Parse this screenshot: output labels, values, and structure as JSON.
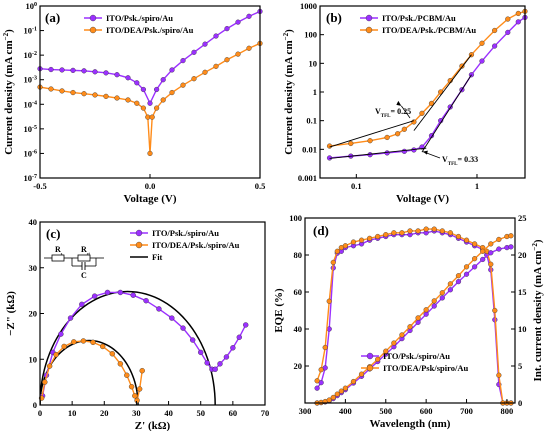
{
  "colors": {
    "purple": "#9b30ff",
    "orange": "#ff8c1a",
    "black": "#000000"
  },
  "chart_data": [
    {
      "id": "a",
      "type": "line",
      "panel_label": "(a)",
      "xlabel": "Voltage (V)",
      "ylabel": "Current density (mA cm",
      "ylabel_sup": "−2",
      "ylabel_end": ")",
      "xlim": [
        -0.5,
        0.5
      ],
      "yscale": "log",
      "ylim": [
        1e-07,
        1
      ],
      "xticks": [
        "-0.5",
        "0.0",
        "0.5"
      ],
      "xtick_values": [
        -0.5,
        0.0,
        0.5
      ],
      "yticks": [
        {
          "v": 1e-07,
          "b": "10",
          "e": "-7"
        },
        {
          "v": 1e-06,
          "b": "10",
          "e": "-6"
        },
        {
          "v": 1e-05,
          "b": "10",
          "e": "-5"
        },
        {
          "v": 0.0001,
          "b": "10",
          "e": "-4"
        },
        {
          "v": 0.001,
          "b": "10",
          "e": "-3"
        },
        {
          "v": 0.01,
          "b": "10",
          "e": "-2"
        },
        {
          "v": 0.1,
          "b": "10",
          "e": "-1"
        },
        {
          "v": 1,
          "b": "10",
          "e": "0"
        }
      ],
      "legend_position": "top-left",
      "series": [
        {
          "name": "ITO/Psk./spiro/Au",
          "color": "#9b30ff",
          "marker": "circle",
          "x": [
            -0.5,
            -0.45,
            -0.4,
            -0.35,
            -0.3,
            -0.25,
            -0.2,
            -0.15,
            -0.1,
            -0.06,
            -0.03,
            0,
            0.03,
            0.06,
            0.1,
            0.15,
            0.2,
            0.25,
            0.3,
            0.35,
            0.4,
            0.45,
            0.5
          ],
          "y": [
            0.0028,
            0.0026,
            0.0025,
            0.0024,
            0.0023,
            0.0021,
            0.0019,
            0.0016,
            0.0012,
            0.00075,
            0.0004,
            0.00011,
            0.0004,
            0.001,
            0.0025,
            0.006,
            0.013,
            0.028,
            0.06,
            0.12,
            0.22,
            0.38,
            0.6
          ]
        },
        {
          "name": "ITO/DEA/Psk./spiro/Au",
          "color": "#ff8c1a",
          "marker": "circle",
          "x": [
            -0.5,
            -0.45,
            -0.4,
            -0.35,
            -0.3,
            -0.25,
            -0.2,
            -0.15,
            -0.1,
            -0.06,
            -0.03,
            -0.01,
            0,
            0.01,
            0.03,
            0.06,
            0.1,
            0.15,
            0.2,
            0.25,
            0.3,
            0.35,
            0.4,
            0.45,
            0.5
          ],
          "y": [
            0.0005,
            0.00042,
            0.00035,
            0.0003,
            0.00027,
            0.00024,
            0.00021,
            0.00018,
            0.00015,
            0.00011,
            7e-05,
            3e-05,
            1e-06,
            3e-05,
            7e-05,
            0.00015,
            0.0003,
            0.0006,
            0.0011,
            0.002,
            0.0035,
            0.0065,
            0.011,
            0.019,
            0.03
          ]
        }
      ]
    },
    {
      "id": "b",
      "type": "line",
      "panel_label": "(b)",
      "xlabel": "Voltage (V)",
      "ylabel": "Current density (mA cm",
      "ylabel_sup": "−2",
      "ylabel_end": ")",
      "xscale": "log",
      "xlim": [
        0.05,
        2.5
      ],
      "yscale": "log",
      "ylim": [
        0.001,
        1000
      ],
      "xticks": [
        "0.1",
        "1"
      ],
      "xtick_values": [
        0.1,
        1
      ],
      "yticks": [
        "0.001",
        "0.01",
        "0.1",
        "1",
        "10",
        "100",
        "1000"
      ],
      "ytick_values": [
        0.001,
        0.01,
        0.1,
        1,
        10,
        100,
        1000
      ],
      "legend_position": "top-left",
      "annotations": [
        {
          "text": "V",
          "sub": "TFL",
          "rest": "= 0.25",
          "x": 0.25,
          "y": 0.28
        },
        {
          "text": "V",
          "sub": "TFL",
          "rest": "= 0.33",
          "x": 0.33,
          "y": 0.009
        }
      ],
      "series": [
        {
          "name": "ITO/Psk./PCBM/Au",
          "color": "#9b30ff",
          "marker": "circle",
          "x": [
            0.06,
            0.09,
            0.13,
            0.18,
            0.25,
            0.3,
            0.35,
            0.42,
            0.5,
            0.6,
            0.75,
            0.9,
            1.1,
            1.4,
            1.8,
            2.2,
            2.5
          ],
          "y": [
            0.005,
            0.0058,
            0.0065,
            0.0075,
            0.0085,
            0.0095,
            0.012,
            0.03,
            0.1,
            0.3,
            1.2,
            4,
            12,
            40,
            120,
            280,
            400
          ]
        },
        {
          "name": "ITO/DEA/Psk./PCBM/Au",
          "color": "#ff8c1a",
          "marker": "circle",
          "x": [
            0.06,
            0.09,
            0.13,
            0.18,
            0.22,
            0.25,
            0.3,
            0.35,
            0.42,
            0.5,
            0.6,
            0.75,
            0.9,
            1.1,
            1.4,
            1.8,
            2.2,
            2.5
          ],
          "y": [
            0.013,
            0.016,
            0.02,
            0.026,
            0.035,
            0.05,
            0.09,
            0.18,
            0.4,
            1,
            2.5,
            8,
            20,
            50,
            140,
            350,
            550,
            650
          ]
        }
      ]
    },
    {
      "id": "c",
      "type": "scatter",
      "panel_label": "(c)",
      "xlabel": "Z' (kΩ)",
      "ylabel": "−Z\" (kΩ)",
      "xlim": [
        0,
        70
      ],
      "ylim": [
        0,
        40
      ],
      "xticks": [
        0,
        10,
        20,
        30,
        40,
        50,
        60,
        70
      ],
      "yticks": [
        0,
        10,
        20,
        30,
        40
      ],
      "legend_position": "top-right",
      "circuit_labels": {
        "r1": "R",
        "r1_sub": "s",
        "r2": "R",
        "r2_sub": "ct",
        "c": "C"
      },
      "series": [
        {
          "name": "ITO/Psk./spiro/Au",
          "color": "#9b30ff",
          "marker": "circle",
          "x": [
            0.8,
            2,
            4,
            6.5,
            9.5,
            13,
            17,
            21,
            25,
            29,
            33,
            37,
            41,
            44.5,
            47.5,
            50,
            52,
            53.5,
            54.5,
            56,
            58,
            60,
            62,
            64
          ],
          "y": [
            2,
            6.5,
            11.5,
            15.5,
            19,
            22,
            23.8,
            24.6,
            24.6,
            24,
            22.8,
            21,
            19,
            16.8,
            14.2,
            11.5,
            9.2,
            7.8,
            7.8,
            9,
            10.5,
            12.5,
            14.8,
            17.5
          ]
        },
        {
          "name": "ITO/DEA/Psk./spiro/Au",
          "color": "#ff8c1a",
          "marker": "circle",
          "x": [
            0.5,
            1.5,
            3,
            5,
            7.5,
            10.5,
            13.5,
            16.5,
            19.5,
            22.5,
            25,
            27,
            28.5,
            29.5,
            30.2,
            31,
            31.8
          ],
          "y": [
            1.5,
            5,
            8.5,
            11,
            12.8,
            13.8,
            14,
            13.7,
            12.8,
            11.2,
            9,
            6.5,
            4,
            2,
            1,
            3.5,
            7.5
          ]
        },
        {
          "name": "Fit",
          "color": "#000000",
          "marker": "none",
          "arcs": [
            {
              "r0": 0,
              "r1": 54.5,
              "height": 24.8
            },
            {
              "r0": 0,
              "r1": 30.5,
              "height": 14.1
            }
          ]
        }
      ]
    },
    {
      "id": "d",
      "type": "line",
      "panel_label": "(d)",
      "xlabel": "Wavelength (nm)",
      "ylabel": "EQE (%)",
      "ylabel2": "Int. current density (mA cm",
      "ylabel2_sup": "−2",
      "ylabel2_end": ")",
      "xlim": [
        300,
        820
      ],
      "ylim": [
        0,
        100
      ],
      "ylim2": [
        0,
        25
      ],
      "xticks": [
        300,
        400,
        500,
        600,
        700,
        800
      ],
      "yticks": [
        20,
        40,
        60,
        80,
        100
      ],
      "yticks2": [
        0,
        5,
        10,
        15,
        20,
        25
      ],
      "legend_position": "bottom-left",
      "series": [
        {
          "name": "ITO/Psk./spiro/Au",
          "color": "#9b30ff",
          "marker": "circle",
          "x": [
            330,
            340,
            350,
            360,
            370,
            380,
            390,
            400,
            420,
            440,
            460,
            480,
            500,
            520,
            540,
            560,
            580,
            600,
            620,
            640,
            660,
            680,
            700,
            720,
            740,
            750,
            760,
            770,
            780,
            790,
            800,
            810
          ],
          "y": [
            8,
            11,
            19,
            40,
            73,
            81,
            82,
            84,
            85,
            86,
            88,
            89,
            90,
            91,
            91,
            91,
            92,
            92,
            93,
            92,
            91,
            89,
            87,
            85,
            83,
            80,
            72,
            45,
            10,
            0,
            0,
            0
          ]
        },
        {
          "name": "ITO/DEA/Psk/spiro/Au",
          "color": "#ff8c1a",
          "marker": "circle",
          "x": [
            330,
            340,
            350,
            360,
            370,
            380,
            390,
            400,
            420,
            440,
            460,
            480,
            500,
            520,
            540,
            560,
            580,
            600,
            620,
            640,
            660,
            680,
            700,
            720,
            740,
            750,
            760,
            770,
            780,
            790,
            800,
            810
          ],
          "y": [
            12,
            18,
            30,
            55,
            76,
            82,
            84,
            85,
            87,
            88,
            89,
            90,
            91,
            92,
            92,
            93,
            93,
            94,
            94,
            93,
            92,
            90,
            88,
            86,
            84,
            82,
            75,
            50,
            15,
            0,
            0,
            0
          ]
        },
        {
          "name": "ITO/Psk./spiro/Au (integrated)",
          "color": "#9b30ff",
          "marker": "circle",
          "axis": "right",
          "x": [
            330,
            340,
            350,
            360,
            370,
            380,
            390,
            400,
            420,
            440,
            460,
            480,
            500,
            520,
            540,
            560,
            580,
            600,
            620,
            640,
            660,
            680,
            700,
            720,
            740,
            760,
            780,
            800,
            810
          ],
          "y": [
            0,
            0.05,
            0.15,
            0.3,
            0.6,
            1.0,
            1.4,
            1.8,
            2.7,
            3.6,
            4.6,
            5.6,
            6.6,
            7.6,
            8.7,
            9.8,
            10.9,
            12,
            13.1,
            14.2,
            15.3,
            16.4,
            17.4,
            18.4,
            19.4,
            20.3,
            20.8,
            21,
            21.1
          ]
        },
        {
          "name": "ITO/DEA/Psk/spiro/Au (integrated)",
          "color": "#ff8c1a",
          "marker": "circle",
          "axis": "right",
          "x": [
            330,
            340,
            350,
            360,
            370,
            380,
            390,
            400,
            420,
            440,
            460,
            480,
            500,
            520,
            540,
            560,
            580,
            600,
            620,
            640,
            660,
            680,
            700,
            720,
            740,
            760,
            780,
            800,
            810
          ],
          "y": [
            0,
            0.08,
            0.2,
            0.4,
            0.75,
            1.2,
            1.6,
            2.0,
            2.9,
            3.9,
            4.9,
            5.9,
            7,
            8.1,
            9.2,
            10.3,
            11.5,
            12.6,
            13.8,
            14.9,
            16.1,
            17.2,
            18.4,
            19.5,
            20.5,
            21.5,
            22.1,
            22.5,
            22.6
          ]
        }
      ]
    }
  ]
}
